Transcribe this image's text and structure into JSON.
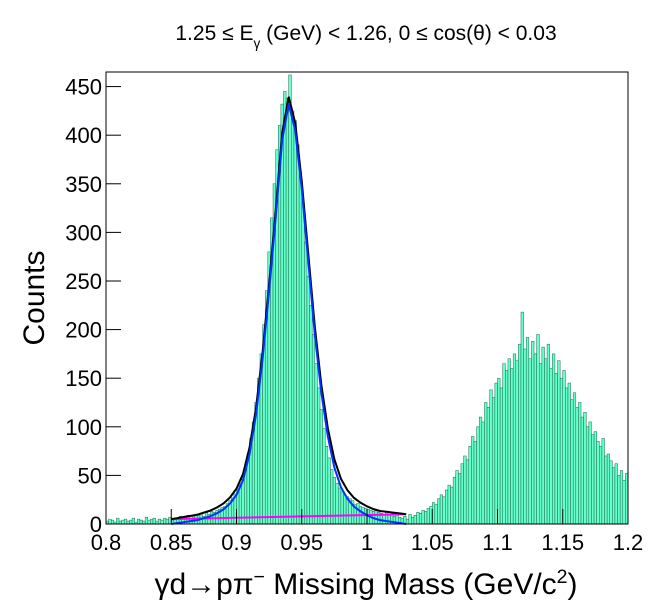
{
  "chart_data": {
    "type": "histogram",
    "title": [
      "1.25 ≤ E",
      "γ",
      " (GeV) < 1.26, 0 ≤ cos(θ) < 0.03"
    ],
    "x_label": [
      "γd→pπ",
      "−",
      " Missing Mass (GeV/c",
      "2",
      ")"
    ],
    "y_label": "Counts",
    "color": "#66ffcc",
    "edge_color": "#1d6b4c",
    "bins": [
      0.8,
      0.802,
      0.804,
      0.806,
      0.808,
      0.81,
      0.812,
      0.814,
      0.816,
      0.818,
      0.82,
      0.822,
      0.824,
      0.826,
      0.828,
      0.83,
      0.832,
      0.834,
      0.836,
      0.838,
      0.84,
      0.842,
      0.844,
      0.846,
      0.848,
      0.85,
      0.852,
      0.854,
      0.856,
      0.858,
      0.86,
      0.862,
      0.864,
      0.866,
      0.868,
      0.87,
      0.872,
      0.874,
      0.876,
      0.878,
      0.88,
      0.882,
      0.884,
      0.886,
      0.888,
      0.89,
      0.892,
      0.894,
      0.896,
      0.898,
      0.9,
      0.902,
      0.904,
      0.906,
      0.908,
      0.91,
      0.912,
      0.914,
      0.916,
      0.918,
      0.92,
      0.922,
      0.924,
      0.926,
      0.928,
      0.93,
      0.932,
      0.934,
      0.936,
      0.938,
      0.94,
      0.942,
      0.944,
      0.946,
      0.948,
      0.95,
      0.952,
      0.954,
      0.956,
      0.958,
      0.96,
      0.962,
      0.964,
      0.966,
      0.968,
      0.97,
      0.972,
      0.974,
      0.976,
      0.978,
      0.98,
      0.982,
      0.984,
      0.986,
      0.988,
      0.99,
      0.992,
      0.994,
      0.996,
      0.998,
      1.0,
      1.002,
      1.004,
      1.006,
      1.008,
      1.01,
      1.012,
      1.014,
      1.016,
      1.018,
      1.02,
      1.022,
      1.024,
      1.026,
      1.028,
      1.03,
      1.032,
      1.034,
      1.036,
      1.038,
      1.04,
      1.042,
      1.044,
      1.046,
      1.048,
      1.05,
      1.052,
      1.054,
      1.056,
      1.058,
      1.06,
      1.062,
      1.064,
      1.066,
      1.068,
      1.07,
      1.072,
      1.074,
      1.076,
      1.078,
      1.08,
      1.082,
      1.084,
      1.086,
      1.088,
      1.09,
      1.092,
      1.094,
      1.096,
      1.098,
      1.1,
      1.102,
      1.104,
      1.106,
      1.108,
      1.11,
      1.112,
      1.114,
      1.116,
      1.118,
      1.12,
      1.122,
      1.124,
      1.126,
      1.128,
      1.13,
      1.132,
      1.134,
      1.136,
      1.138,
      1.14,
      1.142,
      1.144,
      1.146,
      1.148,
      1.15,
      1.152,
      1.154,
      1.156,
      1.158,
      1.16,
      1.162,
      1.164,
      1.166,
      1.168,
      1.17,
      1.172,
      1.174,
      1.176,
      1.178,
      1.18,
      1.182,
      1.184,
      1.186,
      1.188,
      1.19,
      1.192,
      1.194,
      1.196,
      1.198,
      1.2
    ],
    "counts": [
      3,
      5,
      4,
      2,
      6,
      3,
      4,
      5,
      3,
      4,
      6,
      2,
      5,
      4,
      3,
      7,
      4,
      5,
      6,
      3,
      5,
      4,
      6,
      5,
      7,
      4,
      6,
      5,
      8,
      6,
      7,
      9,
      6,
      8,
      10,
      9,
      11,
      8,
      12,
      10,
      13,
      12,
      14,
      15,
      17,
      18,
      21,
      24,
      27,
      31,
      36,
      42,
      50,
      60,
      72,
      88,
      105,
      125,
      150,
      175,
      205,
      240,
      280,
      315,
      350,
      385,
      410,
      432,
      445,
      438,
      462,
      425,
      415,
      390,
      360,
      330,
      290,
      255,
      225,
      195,
      165,
      140,
      118,
      98,
      80,
      68,
      56,
      48,
      42,
      37,
      33,
      30,
      28,
      26,
      24,
      20,
      21,
      18,
      17,
      16,
      15,
      14,
      13,
      14,
      12,
      11,
      10,
      12,
      9,
      10,
      8,
      9,
      7,
      6,
      8,
      5,
      10,
      7,
      9,
      12,
      11,
      14,
      13,
      16,
      18,
      22,
      20,
      26,
      30,
      28,
      35,
      40,
      38,
      48,
      55,
      52,
      62,
      70,
      66,
      80,
      90,
      85,
      100,
      110,
      105,
      125,
      120,
      138,
      130,
      145,
      150,
      140,
      165,
      158,
      170,
      160,
      175,
      168,
      185,
      218,
      180,
      192,
      170,
      188,
      175,
      195,
      165,
      182,
      170,
      185,
      160,
      175,
      155,
      168,
      150,
      158,
      140,
      145,
      128,
      135,
      120,
      125,
      110,
      115,
      100,
      105,
      92,
      95,
      85,
      80,
      88,
      70,
      72,
      65,
      58,
      62,
      50,
      55,
      45,
      52
    ],
    "fits": [
      {
        "color": "#ff00ff",
        "x": [
          0.85,
          1.03
        ],
        "values": [
          5,
          10
        ]
      },
      {
        "color": "#000000",
        "x": [
          0.85,
          0.855,
          0.86,
          0.865,
          0.87,
          0.875,
          0.88,
          0.885,
          0.89,
          0.895,
          0.9,
          0.905,
          0.91,
          0.915,
          0.92,
          0.925,
          0.93,
          0.935,
          0.94,
          0.945,
          0.95,
          0.955,
          0.96,
          0.965,
          0.97,
          0.975,
          0.98,
          0.985,
          0.99,
          0.995,
          1.0,
          1.005,
          1.01,
          1.015,
          1.02,
          1.025,
          1.03
        ],
        "values": [
          5,
          6.1,
          7.3,
          8.4,
          9.6,
          11.7,
          13.8,
          17,
          21.1,
          27.3,
          36.4,
          51.5,
          78.7,
          119.8,
          176.9,
          247.1,
          322.2,
          402.4,
          439.5,
          412.6,
          352.8,
          277.9,
          203.1,
          143.2,
          98.3,
          66.5,
          46.6,
          34.8,
          26.9,
          22,
          18.2,
          15.3,
          13.4,
          12.6,
          11.7,
          10.9,
          10
        ]
      },
      {
        "color": "#0033ff",
        "x": [
          0.85,
          0.855,
          0.86,
          0.865,
          0.87,
          0.875,
          0.88,
          0.885,
          0.89,
          0.895,
          0.9,
          0.905,
          0.91,
          0.915,
          0.92,
          0.925,
          0.93,
          0.935,
          0.94,
          0.945,
          0.95,
          0.955,
          0.96,
          0.965,
          0.97,
          0.975,
          0.98,
          0.985,
          0.99,
          0.995,
          1.0,
          1.005,
          1.01,
          1.015,
          1.02,
          1.025,
          1.03
        ],
        "values": [
          0,
          1,
          2,
          3,
          4,
          6,
          8,
          11,
          15,
          21,
          30,
          45,
          72,
          113,
          170,
          240,
          315,
          395,
          432,
          405,
          345,
          270,
          195,
          135,
          90,
          58,
          38,
          26,
          18,
          13,
          9,
          6,
          4,
          3,
          2,
          1,
          0
        ]
      }
    ],
    "xlim": [
      0.8,
      1.2
    ],
    "ylim": [
      0,
      465
    ],
    "xticks": [
      0.8,
      0.85,
      0.9,
      0.95,
      1,
      1.05,
      1.1,
      1.15,
      1.2
    ],
    "yticks": [
      0,
      50,
      100,
      150,
      200,
      250,
      300,
      350,
      400,
      450
    ]
  }
}
